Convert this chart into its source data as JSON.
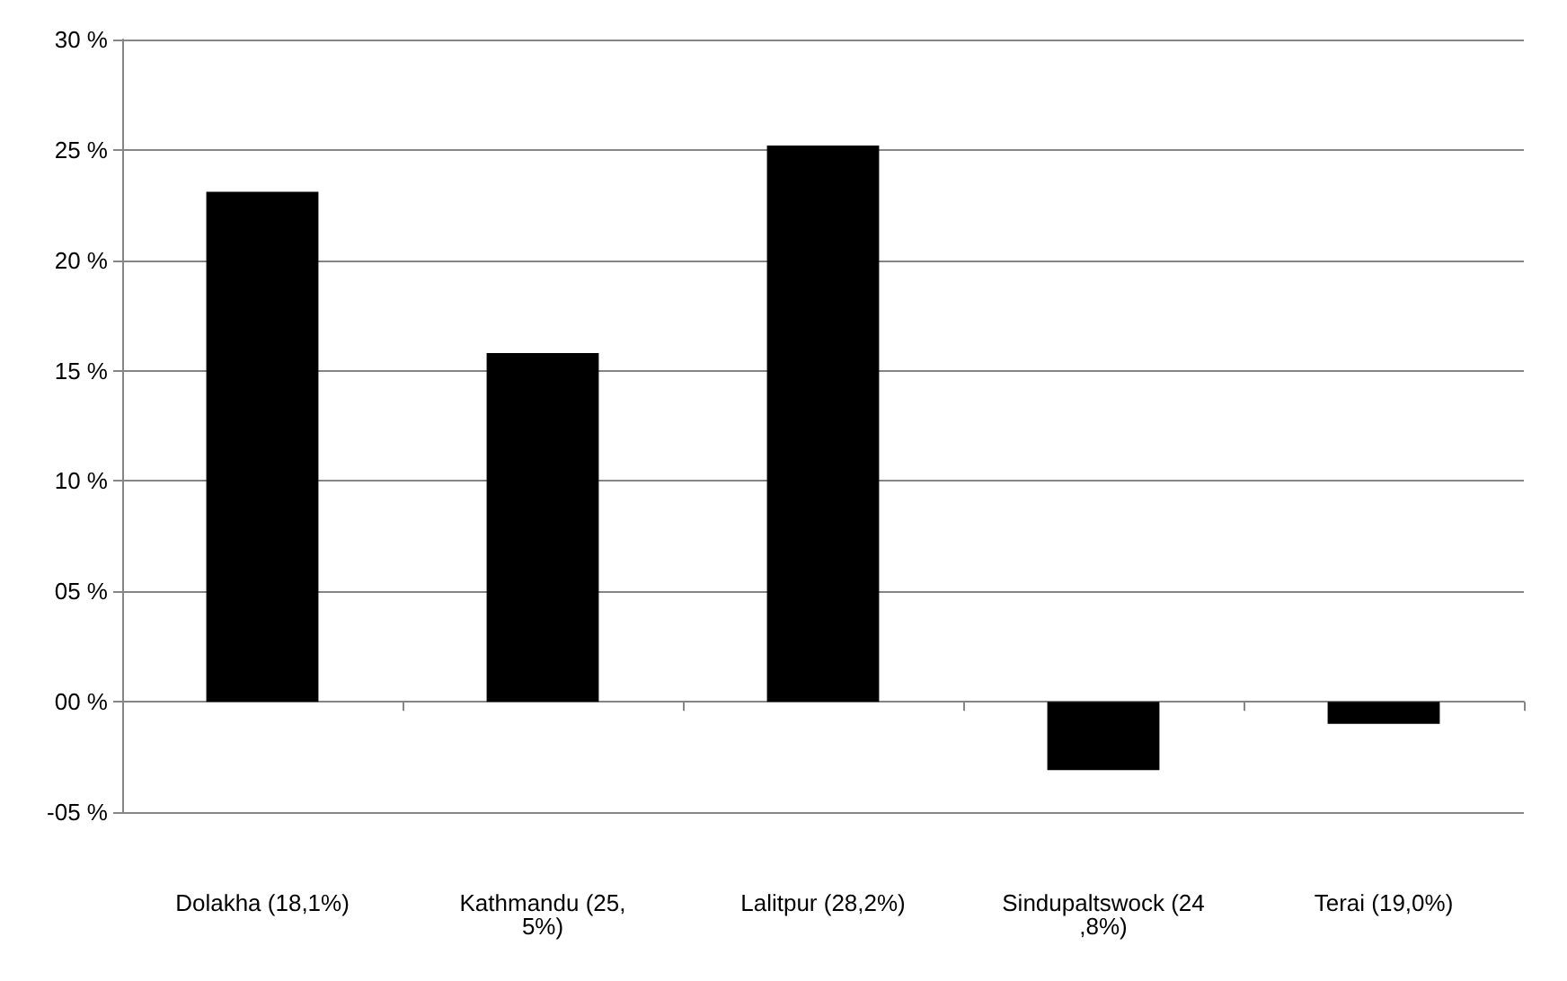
{
  "chart_data": {
    "type": "bar",
    "categories": [
      "Dolakha (18,1%)",
      "Kathmandu (25,5%)",
      "Lalitpur (28,2%)",
      "Sindupaltswock (24,8%)",
      "Terai (19,0%)"
    ],
    "values": [
      23.1,
      15.8,
      25.2,
      -3.1,
      -1.0
    ],
    "color": "#000000",
    "ylim": [
      -5,
      30
    ],
    "yticks": [
      {
        "value": -5,
        "label": "-05 %"
      },
      {
        "value": 0,
        "label": "00 %"
      },
      {
        "value": 5,
        "label": "05 %"
      },
      {
        "value": 10,
        "label": "10 %"
      },
      {
        "value": 15,
        "label": "15 %"
      },
      {
        "value": 20,
        "label": "20 %"
      },
      {
        "value": 25,
        "label": "25 %"
      },
      {
        "value": 30,
        "label": "30 %"
      }
    ],
    "grid": "y"
  }
}
